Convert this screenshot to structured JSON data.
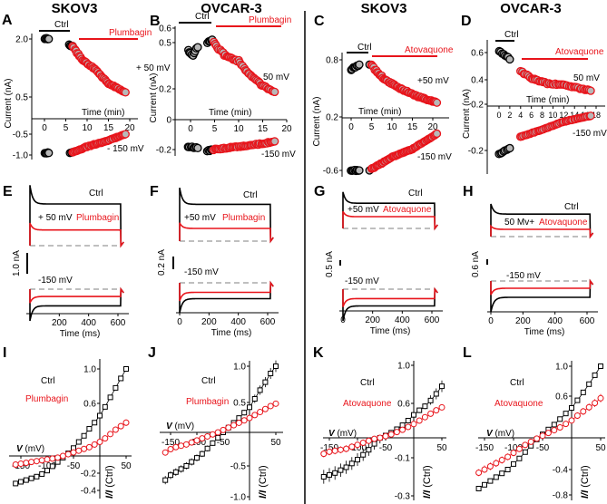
{
  "headers": [
    "SKOV3",
    "OVCAR-3",
    "SKOV3",
    "OVCAR-3"
  ],
  "colors": {
    "ctrl": "#000000",
    "drug": "#e8141b",
    "marker_fill": "#b8b8b8",
    "baseline": "#aaaaaa"
  },
  "chart_data": [
    {
      "panel": "A",
      "type": "scatter",
      "ctrl_label": "Ctrl",
      "drug_label": "Plumbagin",
      "pos_label": "+ 50 mV",
      "neg_label": "- 150 mV",
      "xlabel": "Time (min)",
      "ylabel": "Current (nA)",
      "xticks": [
        0,
        5,
        10,
        15,
        20
      ],
      "xtick_labels": [
        "0",
        "5",
        "10",
        "15",
        "20"
      ],
      "yticks": [
        2.0,
        0.5,
        -0.5,
        -1.0
      ],
      "ytick_labels": [
        "2.0",
        "0.5",
        "-0.5",
        "-1.0"
      ],
      "series": [
        {
          "name": "Ctrl +50 mV",
          "group": "ctrl",
          "points": [
            [
              0,
              2.0
            ],
            [
              1,
              2.0
            ]
          ]
        },
        {
          "name": "Ctrl +50 mV (pre-drug)",
          "group": "ctrl",
          "points": [
            [
              5.8,
              1.85
            ],
            [
              6.6,
              1.82
            ]
          ]
        },
        {
          "name": "Plumbagin +50 mV",
          "group": "drug",
          "points": [
            [
              6.6,
              1.8
            ],
            [
              9,
              1.45
            ],
            [
              12,
              1.2
            ],
            [
              15,
              0.85
            ],
            [
              19,
              0.62
            ]
          ]
        },
        {
          "name": "Ctrl -150 mV",
          "group": "ctrl",
          "points": [
            [
              0,
              -0.95
            ],
            [
              1,
              -0.95
            ]
          ]
        },
        {
          "name": "Ctrl -150 mV (pre-drug)",
          "group": "ctrl",
          "points": [
            [
              6,
              -0.95
            ],
            [
              6.6,
              -0.93
            ]
          ]
        },
        {
          "name": "Plumbagin -150 mV",
          "group": "drug",
          "points": [
            [
              6.6,
              -0.93
            ],
            [
              10,
              -0.8
            ],
            [
              15,
              -0.65
            ],
            [
              19,
              -0.5
            ]
          ]
        }
      ]
    },
    {
      "panel": "B",
      "type": "scatter",
      "ctrl_label": "Ctrl",
      "drug_label": "Plumbagin",
      "pos_label": "50 mV",
      "neg_label": "-150 mV",
      "xlabel": "Time (min)",
      "ylabel": "Current (nA)",
      "xticks": [
        0,
        5,
        10,
        15,
        20
      ],
      "xtick_labels": [
        "0",
        "5",
        "10",
        "15",
        "20"
      ],
      "yticks": [
        0.6,
        0.5,
        0.2,
        0,
        -0.2
      ],
      "ytick_labels": [
        "0.6",
        "0.5",
        "0.2",
        "0",
        "-0.2"
      ],
      "series": [
        {
          "name": "Ctrl +50 mV",
          "group": "ctrl",
          "points": [
            [
              -0.5,
              0.45
            ],
            [
              0.5,
              0.42
            ],
            [
              1.5,
              0.47
            ]
          ]
        },
        {
          "name": "Ctrl +50 mV (pre-drug)",
          "group": "ctrl",
          "points": [
            [
              3.5,
              0.5
            ],
            [
              4.5,
              0.52
            ]
          ]
        },
        {
          "name": "Plumbagin +50 mV",
          "group": "drug",
          "points": [
            [
              4.8,
              0.5
            ],
            [
              7,
              0.42
            ],
            [
              10,
              0.38
            ],
            [
              12,
              0.3
            ],
            [
              15,
              0.22
            ],
            [
              17.5,
              0.18
            ]
          ]
        },
        {
          "name": "Ctrl -150 mV",
          "group": "ctrl",
          "points": [
            [
              -0.5,
              -0.18
            ],
            [
              1.5,
              -0.19
            ]
          ]
        },
        {
          "name": "Ctrl -150 mV (pre-drug)",
          "group": "ctrl",
          "points": [
            [
              3.5,
              -0.21
            ],
            [
              4.5,
              -0.2
            ]
          ]
        },
        {
          "name": "Plumbagin -150 mV",
          "group": "drug",
          "points": [
            [
              4.8,
              -0.2
            ],
            [
              10,
              -0.18
            ],
            [
              15,
              -0.16
            ],
            [
              17.5,
              -0.145
            ]
          ]
        }
      ]
    },
    {
      "panel": "C",
      "type": "scatter",
      "ctrl_label": "Ctrl",
      "drug_label": "Atovaquone",
      "pos_label": "+50 mV",
      "neg_label": "-150 mV",
      "xlabel": "Time (min)",
      "ylabel": "Current (nA)",
      "xticks": [
        0,
        5,
        10,
        15,
        20
      ],
      "xtick_labels": [
        "0",
        "5",
        "10",
        "15",
        "20"
      ],
      "yticks": [
        0.8,
        0.2,
        -0.6
      ],
      "ytick_labels": [
        "0.8",
        "0.2",
        "-0.6"
      ],
      "series": [
        {
          "name": "Ctrl +50 mV",
          "group": "ctrl",
          "points": [
            [
              0,
              0.7
            ],
            [
              2,
              0.75
            ]
          ]
        },
        {
          "name": "Ctrl +50 mV (pre-drug)",
          "group": "ctrl",
          "points": [
            [
              4.5,
              0.75
            ]
          ]
        },
        {
          "name": "Atovaquone +50 mV",
          "group": "drug",
          "points": [
            [
              5,
              0.74
            ],
            [
              8,
              0.6
            ],
            [
              12,
              0.5
            ],
            [
              16,
              0.42
            ],
            [
              21,
              0.35
            ]
          ]
        },
        {
          "name": "Ctrl -150 mV",
          "group": "ctrl",
          "points": [
            [
              0,
              -0.6
            ],
            [
              2,
              -0.6
            ]
          ]
        },
        {
          "name": "Ctrl -150 mV (pre-drug)",
          "group": "ctrl",
          "points": [
            [
              4.5,
              -0.6
            ]
          ]
        },
        {
          "name": "Atovaquone -150 mV",
          "group": "drug",
          "points": [
            [
              5,
              -0.58
            ],
            [
              10,
              -0.4
            ],
            [
              15,
              -0.28
            ],
            [
              21,
              -0.05
            ]
          ]
        }
      ]
    },
    {
      "panel": "D",
      "type": "scatter",
      "ctrl_label": "Ctrl",
      "drug_label": "Atovaquone",
      "pos_label": "50 mV",
      "neg_label": "-150 mV",
      "xlabel": "Time (min)",
      "ylabel": "Current (nA)",
      "xticks": [
        0,
        2,
        4,
        6,
        8,
        10,
        12,
        14,
        16,
        18
      ],
      "xtick_labels": [
        "0",
        "2",
        "4",
        "6",
        "8",
        "10",
        "12",
        "14",
        "16",
        "18"
      ],
      "yticks": [
        0.6,
        0.4,
        0.2,
        -0.2
      ],
      "ytick_labels": [
        "0.6",
        "0.4",
        "0.2",
        "-0.2"
      ],
      "series": [
        {
          "name": "Ctrl +50 mV",
          "group": "ctrl",
          "points": [
            [
              0,
              0.61
            ],
            [
              2,
              0.55
            ]
          ]
        },
        {
          "name": "Atovaquone +50 mV",
          "group": "drug",
          "points": [
            [
              4,
              0.46
            ],
            [
              6,
              0.41
            ],
            [
              9,
              0.37
            ],
            [
              13,
              0.35
            ],
            [
              17,
              0.31
            ]
          ]
        },
        {
          "name": "Ctrl -150 mV",
          "group": "ctrl",
          "points": [
            [
              0,
              -0.23
            ],
            [
              2,
              -0.18
            ]
          ]
        },
        {
          "name": "Atovaquone -150 mV",
          "group": "drug",
          "points": [
            [
              4,
              -0.08
            ],
            [
              8,
              -0.02
            ],
            [
              12,
              0.05
            ],
            [
              17,
              0.1
            ]
          ]
        }
      ]
    },
    {
      "panel": "E",
      "type": "line",
      "ctrl_label": "Ctrl",
      "drug_label": "Plumbagin",
      "pos_label": "+ 50 mV",
      "neg_label": "-150 mV",
      "xlabel": "Time (ms)",
      "scale_label": "1.0 nA",
      "xticks": [
        200,
        400,
        600
      ],
      "xtick_labels": [
        "200",
        "400",
        "600"
      ],
      "steady_nA": {
        "ctrl_pos": 2.0,
        "drug_pos": 0.75,
        "ctrl_neg": -0.8,
        "drug_neg": -0.35
      }
    },
    {
      "panel": "F",
      "type": "line",
      "ctrl_label": "Ctrl",
      "drug_label": "Plumbagin",
      "pos_label": "+50 mV",
      "neg_label": "-150 mV",
      "xlabel": "Time (ms)",
      "scale_label": "0.2 nA",
      "xticks": [
        0,
        200,
        400,
        600
      ],
      "xtick_labels": [
        "0",
        "200",
        "400",
        "600"
      ],
      "steady_nA": {
        "ctrl_pos": 0.58,
        "drug_pos": 0.2,
        "ctrl_neg": -0.25,
        "drug_neg": -0.15
      }
    },
    {
      "panel": "G",
      "type": "line",
      "ctrl_label": "Ctrl",
      "drug_label": "Atovaquone",
      "pos_label": "+50 mV",
      "neg_label": "-150 mV",
      "xlabel": "Time (ms)",
      "scale_label": "0.5 nA",
      "xticks": [
        0,
        200,
        400,
        600
      ],
      "xtick_labels": [
        "0",
        "200",
        "400",
        "600"
      ],
      "steady_nA": {
        "ctrl_pos": 0.75,
        "drug_pos": 0.35,
        "ctrl_neg": -0.5,
        "drug_neg": -0.28
      }
    },
    {
      "panel": "H",
      "type": "line",
      "ctrl_label": "Ctrl",
      "drug_label": "Atovaquone",
      "pos_label": "50 Mv+",
      "neg_label": "-150 mV",
      "xlabel": "Time (ms)",
      "scale_label": "0.6 nA",
      "xticks": [
        0,
        200,
        400,
        600
      ],
      "xtick_labels": [
        "0",
        "200",
        "400",
        "600"
      ],
      "steady_nA": {
        "ctrl_pos": 0.62,
        "drug_pos": 0.2,
        "ctrl_neg": -0.45,
        "drug_neg": -0.2
      }
    },
    {
      "panel": "I",
      "type": "line",
      "ctrl_label": "Ctrl",
      "drug_label": "Plumbagin",
      "v_symbol": "V",
      "v_unit": " (mV)",
      "ylabel_symbol": "I/I",
      "ylabel_unit": " (Ctrl)",
      "xticks": [
        -150,
        -100,
        -50,
        50
      ],
      "xtick_labels": [
        "-150",
        "-100",
        "-50",
        "50"
      ],
      "yticks": [
        1.0,
        0.6,
        -0.2,
        -0.4
      ],
      "ytick_labels": [
        "1.0",
        "0.6",
        "-0.2",
        "-0.4"
      ],
      "x": [
        -160,
        -150,
        -140,
        -130,
        -120,
        -110,
        -100,
        -90,
        -80,
        -70,
        -60,
        -50,
        -40,
        -30,
        -20,
        -10,
        0,
        10,
        20,
        30,
        40,
        50
      ],
      "series": [
        {
          "name": "Ctrl",
          "group": "ctrl",
          "values": [
            -0.32,
            -0.3,
            -0.28,
            -0.26,
            -0.24,
            -0.21,
            -0.17,
            -0.12,
            -0.07,
            -0.02,
            0.03,
            0.09,
            0.16,
            0.23,
            0.31,
            0.38,
            0.46,
            0.56,
            0.67,
            0.78,
            0.89,
            1.0
          ],
          "err": 0.015
        },
        {
          "name": "Plumbagin",
          "group": "drug",
          "values": [
            -0.1,
            -0.09,
            -0.08,
            -0.07,
            -0.06,
            -0.05,
            -0.04,
            -0.03,
            -0.02,
            0,
            0.02,
            0.04,
            0.06,
            0.08,
            0.1,
            0.13,
            0.16,
            0.2,
            0.25,
            0.3,
            0.34,
            0.38
          ],
          "err": 0.06
        }
      ]
    },
    {
      "panel": "J",
      "type": "line",
      "ctrl_label": "Ctrl",
      "drug_label": "Plumbagin",
      "v_symbol": "V",
      "v_unit": " (mV)",
      "ylabel_symbol": "I/I",
      "ylabel_unit": " (Ctrl)",
      "xticks": [
        -150,
        -100,
        -50,
        50
      ],
      "xtick_labels": [
        "-150",
        "-100",
        "-50",
        "50"
      ],
      "yticks": [
        1.0,
        0.5,
        -0.5,
        -1.0
      ],
      "ytick_labels": [
        "1.0",
        "0.5",
        "-0.5",
        "-1.0"
      ],
      "x": [
        -160,
        -150,
        -140,
        -130,
        -120,
        -110,
        -100,
        -90,
        -80,
        -70,
        -60,
        -50,
        -40,
        -30,
        -20,
        -10,
        0,
        10,
        20,
        30,
        40,
        50
      ],
      "series": [
        {
          "name": "Ctrl",
          "group": "ctrl",
          "values": [
            -0.73,
            -0.65,
            -0.6,
            -0.55,
            -0.5,
            -0.44,
            -0.38,
            -0.32,
            -0.24,
            -0.16,
            -0.08,
            0.0,
            0.08,
            0.16,
            0.24,
            0.33,
            0.42,
            0.55,
            0.67,
            0.78,
            0.9,
            1.0
          ],
          "err": 0.08
        },
        {
          "name": "Plumbagin",
          "group": "drug",
          "values": [
            -0.3,
            -0.25,
            -0.22,
            -0.2,
            -0.18,
            -0.15,
            -0.12,
            -0.09,
            -0.06,
            -0.03,
            0.0,
            0.04,
            0.08,
            0.12,
            0.16,
            0.2,
            0.24,
            0.29,
            0.34,
            0.39,
            0.44,
            0.48
          ],
          "err": 0.02
        }
      ]
    },
    {
      "panel": "K",
      "type": "line",
      "ctrl_label": "Ctrl",
      "drug_label": "Atovaquone",
      "v_symbol": "V",
      "v_unit": " (mV)",
      "ylabel_symbol": "I/I",
      "ylabel_unit": " (Ctrl)",
      "xticks": [
        -150,
        -100,
        -50,
        50
      ],
      "xtick_labels": [
        "-150",
        "-100",
        "-50",
        "50"
      ],
      "yticks": [
        1.0,
        0.6,
        -0.1,
        -0.3
      ],
      "ytick_labels": [
        "1.0",
        "0.6",
        "-0.1",
        "-0.3"
      ],
      "x": [
        -160,
        -150,
        -140,
        -130,
        -120,
        -110,
        -100,
        -90,
        -80,
        -70,
        -60,
        -50,
        -40,
        -30,
        -20,
        -10,
        0,
        10,
        20,
        30,
        40,
        50
      ],
      "series": [
        {
          "name": "Ctrl",
          "group": "ctrl",
          "values": [
            -0.2,
            -0.19,
            -0.18,
            -0.165,
            -0.15,
            -0.13,
            -0.11,
            -0.085,
            -0.06,
            -0.03,
            0.0,
            0.04,
            0.09,
            0.15,
            0.22,
            0.3,
            0.4,
            0.48,
            0.55,
            0.63,
            0.7,
            0.78
          ],
          "err": 0.07
        },
        {
          "name": "Atovaquone",
          "group": "drug",
          "values": [
            -0.08,
            -0.07,
            -0.065,
            -0.06,
            -0.055,
            -0.045,
            -0.035,
            -0.025,
            -0.015,
            -0.005,
            0.0,
            0.03,
            0.06,
            0.1,
            0.14,
            0.19,
            0.24,
            0.3,
            0.36,
            0.42,
            0.48,
            0.53
          ],
          "err": 0.04
        }
      ]
    },
    {
      "panel": "L",
      "type": "line",
      "ctrl_label": "Ctrl",
      "drug_label": "Atovaquone",
      "v_symbol": "V",
      "v_unit": " (mV)",
      "ylabel_symbol": "I/I",
      "ylabel_unit": " (Ctrl)",
      "xticks": [
        -150,
        -100,
        -50,
        50
      ],
      "xtick_labels": [
        "-150",
        "-100",
        "-50",
        "50"
      ],
      "yticks": [
        1.0,
        0.6,
        -0.4,
        -0.8
      ],
      "ytick_labels": [
        "1.0",
        "0.6",
        "-0.4",
        "-0.8"
      ],
      "x": [
        -160,
        -150,
        -140,
        -130,
        -120,
        -110,
        -100,
        -90,
        -80,
        -70,
        -60,
        -50,
        -40,
        -30,
        -20,
        -10,
        0,
        10,
        20,
        30,
        40,
        50
      ],
      "series": [
        {
          "name": "Ctrl",
          "group": "ctrl",
          "values": [
            -0.7,
            -0.64,
            -0.58,
            -0.52,
            -0.46,
            -0.4,
            -0.33,
            -0.26,
            -0.18,
            -0.1,
            -0.02,
            0.05,
            0.12,
            0.19,
            0.27,
            0.35,
            0.43,
            0.54,
            0.65,
            0.76,
            0.88,
            1.0
          ],
          "err": 0.03
        },
        {
          "name": "Atovaquone",
          "group": "drug",
          "values": [
            -0.45,
            -0.4,
            -0.36,
            -0.32,
            -0.28,
            -0.24,
            -0.19,
            -0.14,
            -0.09,
            -0.05,
            -0.01,
            0.03,
            0.07,
            0.11,
            0.15,
            0.2,
            0.25,
            0.32,
            0.38,
            0.44,
            0.5,
            0.57
          ],
          "err": 0.08
        }
      ]
    }
  ]
}
